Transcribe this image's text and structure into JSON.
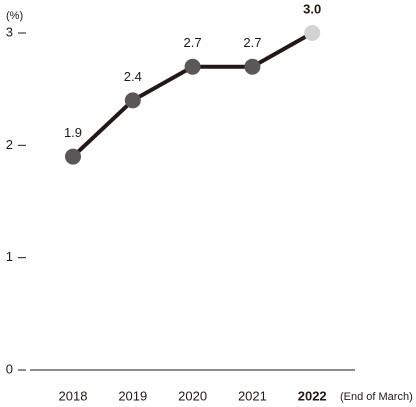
{
  "chart_data": {
    "type": "line",
    "y_unit": "(%)",
    "x_note": "(End of March)",
    "categories": [
      "2018",
      "2019",
      "2020",
      "2021",
      "2022"
    ],
    "series": [
      {
        "color": "#231815",
        "point_colors": [
          "#595757",
          "#595757",
          "#595757",
          "#595757",
          "#d3d3d3"
        ],
        "values": [
          1.9,
          2.4,
          2.7,
          2.7,
          3.0
        ],
        "value_labels": [
          "1.9",
          "2.4",
          "2.7",
          "2.7",
          "3.0"
        ]
      }
    ],
    "ylim": [
      0,
      3
    ],
    "yticks": [
      0,
      1,
      2,
      3
    ]
  }
}
